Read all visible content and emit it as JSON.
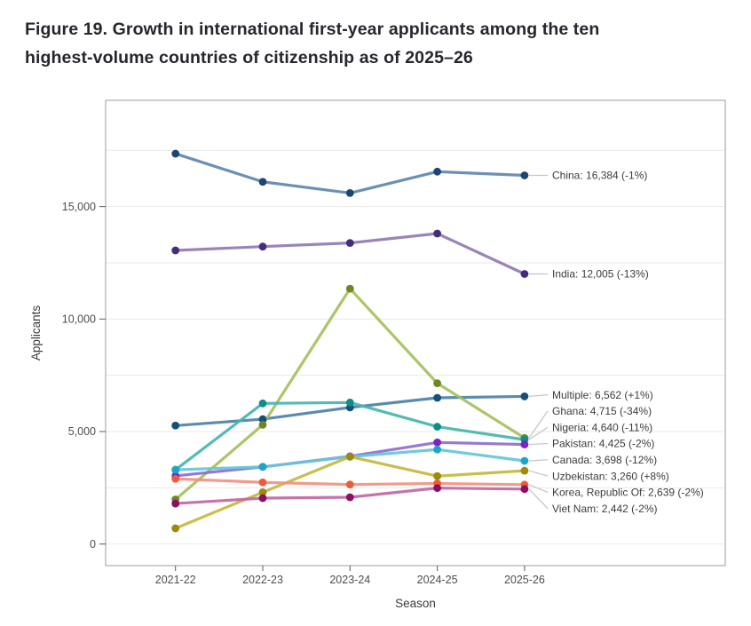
{
  "figure": {
    "title_line1": "Figure 19. Growth in international first-year applicants among the ten",
    "title_line2": "highest-volume countries of citizenship as of 2025–26"
  },
  "chart_data": {
    "type": "line",
    "title": "Figure 19. Growth in international first-year applicants among the ten highest-volume countries of citizenship as of 2025–26",
    "xlabel": "Season",
    "ylabel": "Applicants",
    "categories": [
      "2021-22",
      "2022-23",
      "2023-24",
      "2024-25",
      "2025-26"
    ],
    "yticks": [
      0,
      5000,
      10000,
      15000
    ],
    "ytick_labels": [
      "0",
      "5,000",
      "10,000",
      "15,000"
    ],
    "minor_gridlines": [
      2500,
      7500,
      12500,
      17500
    ],
    "ylim": [
      -950,
      19700
    ],
    "grid": "on",
    "legend_position": "end-of-line-labels",
    "series": [
      {
        "name": "China",
        "values": [
          17350,
          16100,
          15600,
          16550,
          16384
        ],
        "end_label": "China: 16,384 (-1%)",
        "line_color": "#5e87ac",
        "point_color": "#1b4572"
      },
      {
        "name": "India",
        "values": [
          13050,
          13220,
          13380,
          13800,
          12005
        ],
        "end_label": "India: 12,005 (-13%)",
        "line_color": "#9379b1",
        "point_color": "#462d7c"
      },
      {
        "name": "Multiple",
        "values": [
          5265,
          5550,
          6070,
          6500,
          6562
        ],
        "end_label": "Multiple: 6,562 (+1%)",
        "line_color": "#4d81a8",
        "point_color": "#174f79"
      },
      {
        "name": "Ghana",
        "values": [
          1980,
          5300,
          11350,
          7145,
          4715
        ],
        "end_label": "Ghana: 4,715 (-34%)",
        "line_color": "#a5c05b",
        "point_color": "#6f8524"
      },
      {
        "name": "Nigeria",
        "values": [
          3300,
          6250,
          6290,
          5215,
          4640
        ],
        "end_label": "Nigeria: 4,640 (-11%)",
        "line_color": "#45b5ae",
        "point_color": "#0f8e87"
      },
      {
        "name": "Pakistan",
        "values": [
          3030,
          3430,
          3900,
          4515,
          4425
        ],
        "end_label": "Pakistan: 4,425 (-2%)",
        "line_color": "#8b6fd0",
        "point_color": "#7e22c8"
      },
      {
        "name": "Canada",
        "values": [
          3300,
          3430,
          3880,
          4200,
          3698
        ],
        "end_label": "Canada: 3,698 (-12%)",
        "line_color": "#64c5dc",
        "point_color": "#1ba6c8"
      },
      {
        "name": "Uzbekistan",
        "values": [
          700,
          2300,
          3885,
          3020,
          3260
        ],
        "end_label": "Uzbekistan: 3,260 (+8%)",
        "line_color": "#c6b83c",
        "point_color": "#9c8a0a"
      },
      {
        "name": "Korea, Republic Of",
        "values": [
          2900,
          2740,
          2645,
          2693,
          2639
        ],
        "end_label": "Korea, Republic Of: 2,639 (-2%)",
        "line_color": "#f29180",
        "point_color": "#ef5b36"
      },
      {
        "name": "Viet Nam",
        "values": [
          1800,
          2040,
          2080,
          2490,
          2442
        ],
        "end_label": "Viet Nam: 2,442 (-2%)",
        "line_color": "#c167a4",
        "point_color": "#8c0f63"
      }
    ],
    "style": {
      "grid_color": "#e9e9e9",
      "panel_border_color": "#9b9b9b",
      "tick_color": "#5a5a5a",
      "tick_label_color": "#4d4d4d",
      "axis_title_color": "#3a3a3a",
      "end_label_color": "#3c3c3c",
      "connector_color": "#c4c4c4",
      "background": "#ffffff"
    }
  }
}
